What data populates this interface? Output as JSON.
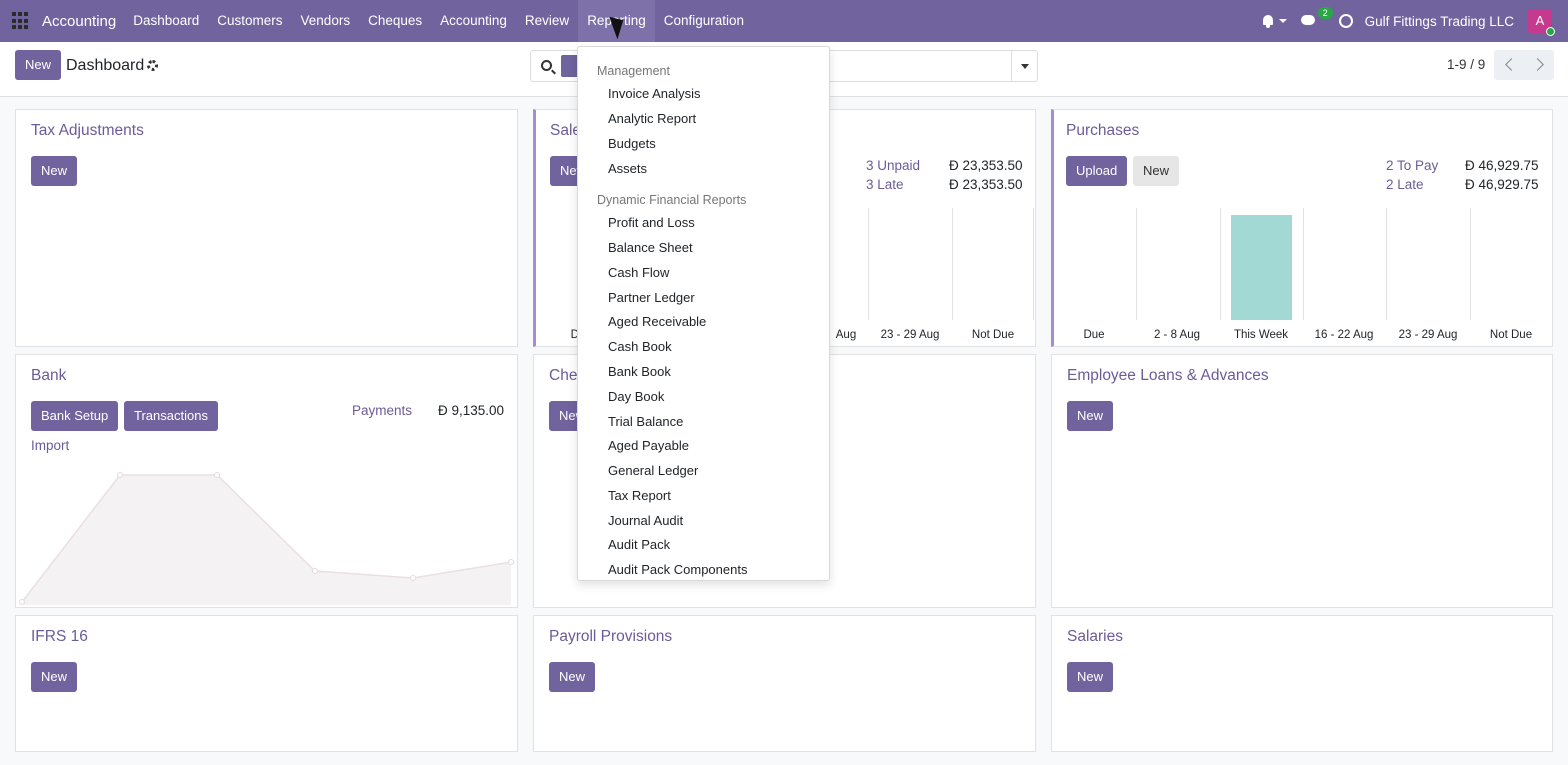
{
  "topnav": {
    "brand": "Accounting",
    "menu": [
      {
        "label": "Dashboard"
      },
      {
        "label": "Customers"
      },
      {
        "label": "Vendors"
      },
      {
        "label": "Cheques"
      },
      {
        "label": "Accounting"
      },
      {
        "label": "Review"
      },
      {
        "label": "Reporting"
      },
      {
        "label": "Configuration"
      }
    ],
    "chat_count": "2",
    "company": "Gulf Fittings Trading LLC",
    "avatar_letter": "A"
  },
  "control": {
    "new_label": "New",
    "title": "Dashboard",
    "pager": "1-9 / 9"
  },
  "cards": {
    "tax": {
      "title": "Tax Adjustments",
      "new_label": "New"
    },
    "sales": {
      "title": "Sale",
      "new_label": "New",
      "unpaid_label": "3 Unpaid",
      "unpaid_value": "Đ 23,353.50",
      "late_label": "3 Late",
      "late_value": "Đ 23,353.50",
      "xlabels": [
        "Du",
        "Aug",
        "23 - 29 Aug",
        "Not Due"
      ]
    },
    "purchases": {
      "title": "Purchases",
      "upload_label": "Upload",
      "new_label": "New",
      "topay_label": "2 To Pay",
      "topay_value": "Đ 46,929.75",
      "late_label": "2 Late",
      "late_value": "Đ 46,929.75",
      "xlabels": [
        "Due",
        "2 - 8 Aug",
        "This Week",
        "16 - 22 Aug",
        "23 - 29 Aug",
        "Not Due"
      ]
    },
    "bank": {
      "title": "Bank",
      "setup_label": "Bank Setup",
      "transactions_label": "Transactions",
      "payments_label": "Payments",
      "payments_value": "Đ 9,135.00",
      "import_label": "Import"
    },
    "cheques": {
      "title": "Che",
      "new_label": "New"
    },
    "loans": {
      "title": "Employee Loans & Advances",
      "new_label": "New"
    },
    "ifrs": {
      "title": "IFRS 16",
      "new_label": "New"
    },
    "payroll": {
      "title": "Payroll Provisions",
      "new_label": "New"
    },
    "salaries": {
      "title": "Salaries",
      "new_label": "New"
    }
  },
  "dropdown": {
    "section1": "Management",
    "items1": [
      "Invoice Analysis",
      "Analytic Report",
      "Budgets",
      "Assets"
    ],
    "section2": "Dynamic Financial Reports",
    "items2": [
      "Profit and Loss",
      "Balance Sheet",
      "Cash Flow",
      "Partner Ledger",
      "Aged Receivable",
      "Cash Book",
      "Bank Book",
      "Day Book",
      "Trial Balance",
      "Aged Payable",
      "General Ledger",
      "Tax Report",
      "Journal Audit",
      "Audit Pack",
      "Audit Pack Components"
    ]
  },
  "colors": {
    "brand": "#71639e",
    "bar": "#a3d9d5"
  }
}
